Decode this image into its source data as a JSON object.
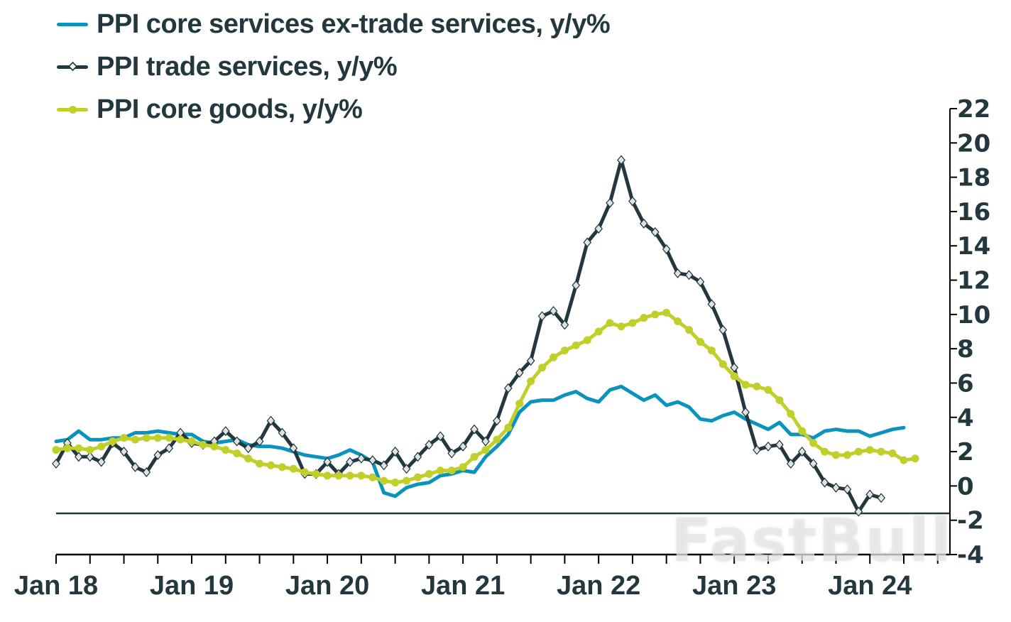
{
  "legend": [
    {
      "label": "PPI core services ex-trade services, y/y%",
      "color": "#0a93bd",
      "marker": "none"
    },
    {
      "label": "PPI trade services, y/y%",
      "color": "#22383e",
      "marker": "diamond"
    },
    {
      "label": "PPI core goods, y/y%",
      "color": "#c0cf2a",
      "marker": "circle"
    }
  ],
  "watermark": "FastBull",
  "chart_data": {
    "type": "line",
    "title": "",
    "xlabel": "",
    "ylabel": "",
    "x_start": "Jan 2018",
    "x_frequency": "monthly",
    "x_tick_labels": [
      "Jan 18",
      "Jan 19",
      "Jan 20",
      "Jan 21",
      "Jan 22",
      "Jan 23",
      "Jan 24"
    ],
    "y_ticks": [
      22,
      20,
      18,
      16,
      14,
      12,
      10,
      8,
      6,
      4,
      2,
      0,
      -2,
      -4
    ],
    "ylim": [
      -4,
      22
    ],
    "y_axis_position": "right",
    "reference_line": -1.6,
    "legend_position": "top-left",
    "grid": false,
    "series": [
      {
        "name": "PPI core services ex-trade services, y/y%",
        "color": "#0a93bd",
        "values": [
          2.6,
          2.7,
          3.2,
          2.7,
          2.7,
          2.8,
          2.8,
          3.1,
          3.1,
          3.2,
          3.1,
          3.0,
          3.0,
          2.6,
          2.5,
          2.6,
          2.7,
          2.4,
          2.3,
          2.3,
          2.2,
          2.0,
          1.8,
          1.7,
          1.6,
          1.8,
          2.1,
          1.8,
          1.4,
          -0.4,
          -0.6,
          -0.1,
          0.1,
          0.2,
          0.6,
          0.7,
          0.9,
          0.8,
          1.7,
          2.3,
          3.0,
          4.3,
          4.9,
          5.0,
          5.0,
          5.3,
          5.5,
          5.1,
          4.9,
          5.6,
          5.8,
          5.4,
          5.0,
          5.3,
          4.7,
          4.9,
          4.6,
          3.9,
          3.8,
          4.1,
          4.3,
          3.9,
          3.6,
          3.3,
          3.7,
          3.0,
          3.0,
          2.8,
          3.2,
          3.3,
          3.2,
          3.2,
          2.9,
          3.1,
          3.3,
          3.4
        ]
      },
      {
        "name": "PPI trade services, y/y%",
        "color": "#22383e",
        "values": [
          1.3,
          2.5,
          1.7,
          1.7,
          1.4,
          2.5,
          2.0,
          1.1,
          0.8,
          1.8,
          2.2,
          3.1,
          2.5,
          2.4,
          2.6,
          3.2,
          2.6,
          2.2,
          2.6,
          3.8,
          3.1,
          2.2,
          0.7,
          0.7,
          1.4,
          0.7,
          1.4,
          1.6,
          1.5,
          1.2,
          2.0,
          1.0,
          1.7,
          2.4,
          2.9,
          1.9,
          2.3,
          3.3,
          2.6,
          3.8,
          5.7,
          6.6,
          7.3,
          9.9,
          10.2,
          9.4,
          11.7,
          14.2,
          15.0,
          16.5,
          19.0,
          16.6,
          15.3,
          14.8,
          13.8,
          12.4,
          12.3,
          11.9,
          10.6,
          9.1,
          6.9,
          4.3,
          2.1,
          2.3,
          2.4,
          1.3,
          2.0,
          1.3,
          0.2,
          -0.1,
          -0.2,
          -1.5,
          -0.5,
          -0.7
        ]
      },
      {
        "name": "PPI core goods, y/y%",
        "color": "#c0cf2a",
        "values": [
          2.1,
          2.2,
          2.2,
          2.1,
          2.3,
          2.6,
          2.8,
          2.7,
          2.8,
          2.8,
          2.8,
          2.7,
          2.6,
          2.4,
          2.3,
          2.1,
          1.9,
          1.6,
          1.3,
          1.2,
          1.1,
          1.0,
          0.8,
          0.7,
          0.6,
          0.6,
          0.6,
          0.6,
          0.5,
          0.3,
          0.2,
          0.3,
          0.5,
          0.7,
          0.9,
          0.9,
          1.1,
          1.7,
          2.1,
          2.7,
          3.4,
          4.8,
          6.1,
          6.9,
          7.5,
          7.9,
          8.2,
          8.5,
          9.0,
          9.5,
          9.3,
          9.5,
          9.8,
          10.0,
          10.1,
          9.6,
          9.1,
          8.4,
          7.9,
          7.1,
          6.4,
          5.9,
          5.8,
          5.6,
          5.0,
          4.2,
          3.2,
          2.5,
          2.0,
          1.8,
          1.8,
          2.0,
          2.1,
          2.0,
          1.9,
          1.5,
          1.6
        ]
      }
    ]
  }
}
